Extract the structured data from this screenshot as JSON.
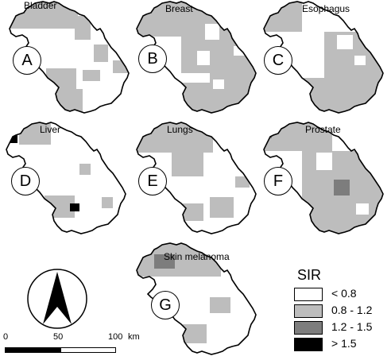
{
  "panels": [
    {
      "title": "Bladder",
      "label": "A"
    },
    {
      "title": "Breast",
      "label": "B"
    },
    {
      "title": "Esophagus",
      "label": "C"
    },
    {
      "title": "Liver",
      "label": "D"
    },
    {
      "title": "Lungs",
      "label": "E"
    },
    {
      "title": "Prostate",
      "label": "F"
    },
    {
      "title": "Skin melanoma",
      "label": "G"
    }
  ],
  "legend": {
    "title": "SIR",
    "items": [
      {
        "label": "< 0.8",
        "color": "#ffffff"
      },
      {
        "label": "0.8 - 1.2",
        "color": "#bdbdbd"
      },
      {
        "label": "1.2 - 1.5",
        "color": "#7d7d7d"
      },
      {
        "label": "> 1.5",
        "color": "#000000"
      }
    ]
  },
  "scale_bar": {
    "ticks": [
      "0",
      "50",
      "100"
    ],
    "unit": "km"
  },
  "colors": {
    "outline": "#000000"
  }
}
